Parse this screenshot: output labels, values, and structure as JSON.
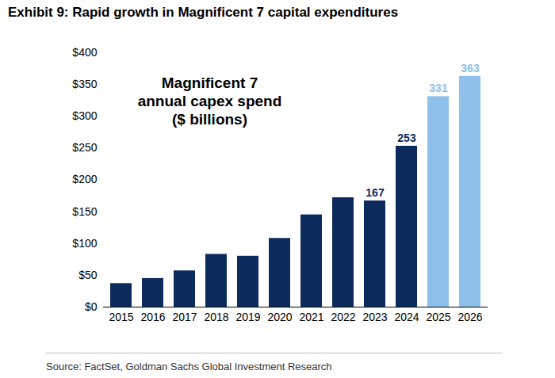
{
  "chart_data": {
    "type": "bar",
    "title": "Exhibit 9: Rapid growth in Magnificent 7 capital expenditures",
    "subtitle": "Magnificent 7 annual capex spend ($ billions)",
    "source": "Source: FactSet, Goldman Sachs Global Investment Research",
    "categories": [
      "2015",
      "2016",
      "2017",
      "2018",
      "2019",
      "2020",
      "2021",
      "2022",
      "2023",
      "2024",
      "2025",
      "2026"
    ],
    "values": [
      37,
      45,
      57,
      83,
      80,
      108,
      145,
      172,
      167,
      253,
      331,
      363
    ],
    "value_labels": [
      null,
      null,
      null,
      null,
      null,
      null,
      null,
      null,
      "167",
      "253",
      "331",
      "363"
    ],
    "colors": [
      "#0c2a5b",
      "#0c2a5b",
      "#0c2a5b",
      "#0c2a5b",
      "#0c2a5b",
      "#0c2a5b",
      "#0c2a5b",
      "#0c2a5b",
      "#0c2a5b",
      "#0c2a5b",
      "#8fc0ea",
      "#8fc0ea"
    ],
    "ylim": [
      0,
      400
    ],
    "yticks": [
      {
        "value": 0,
        "label": "$0"
      },
      {
        "value": 50,
        "label": "$50"
      },
      {
        "value": 100,
        "label": "$100"
      },
      {
        "value": 150,
        "label": "$150"
      },
      {
        "value": 200,
        "label": "$200"
      },
      {
        "value": 250,
        "label": "$250"
      },
      {
        "value": 300,
        "label": "$300"
      },
      {
        "value": 350,
        "label": "$350"
      },
      {
        "value": 400,
        "label": "$400"
      }
    ],
    "grid": false,
    "data_labels": true
  }
}
